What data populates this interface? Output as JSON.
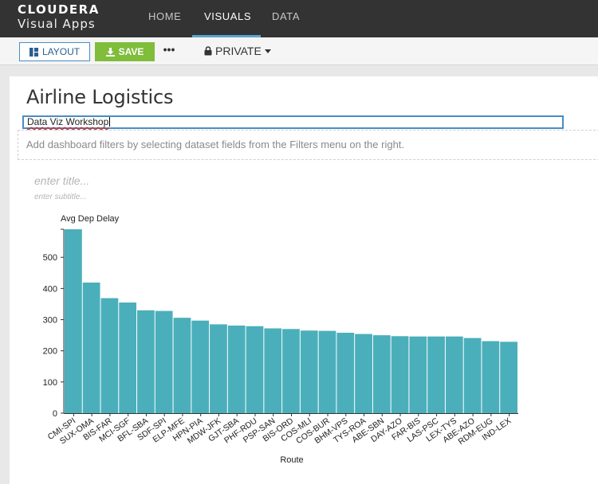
{
  "header": {
    "brand_name": "CLOUDERA",
    "brand_sub": "Visual Apps",
    "nav": [
      {
        "label": "HOME",
        "active": false
      },
      {
        "label": "VISUALS",
        "active": true
      },
      {
        "label": "DATA",
        "active": false
      }
    ]
  },
  "toolbar": {
    "layout_label": "LAYOUT",
    "save_label": "SAVE",
    "more_label": "•••",
    "private_label": "PRIVATE"
  },
  "dashboard": {
    "title": "Airline Logistics",
    "subtitle_value": "Data Viz Workshop",
    "filters_hint": "Add dashboard filters by selecting dataset fields from the Filters menu on the right."
  },
  "visual": {
    "title_placeholder": "enter title...",
    "subtitle_placeholder": "enter subtitle..."
  },
  "colors": {
    "bar": "#4aafbb",
    "accent": "#4a8dc2",
    "save": "#7fbd3b"
  },
  "chart_data": {
    "type": "bar",
    "title": "",
    "ylabel": "Avg Dep Delay",
    "xlabel": "Route",
    "ylim": [
      0,
      590
    ],
    "yticks": [
      0,
      100,
      200,
      300,
      400,
      500
    ],
    "categories": [
      "CMI-SPI",
      "SUX-OMA",
      "BIS-FAR",
      "MCI-SGF",
      "BFL-SBA",
      "SDF-SPI",
      "ELP-MFE",
      "HPN-PIA",
      "MDW-JFK",
      "GJT-SBA",
      "PHF-RDU",
      "PSP-SAN",
      "BIS-ORD",
      "COS-MLI",
      "COS-BUR",
      "BHM-VPS",
      "TYS-ROA",
      "ABE-SBN",
      "DAY-AZO",
      "FAR-BIS",
      "LAS-PSC",
      "LEX-TYS",
      "ABE-AZO",
      "RDM-EUG",
      "IND-LEX"
    ],
    "values": [
      590,
      419,
      369,
      355,
      330,
      328,
      306,
      297,
      285,
      281,
      279,
      272,
      270,
      265,
      264,
      258,
      254,
      250,
      247,
      246,
      246,
      246,
      241,
      231,
      229
    ]
  }
}
